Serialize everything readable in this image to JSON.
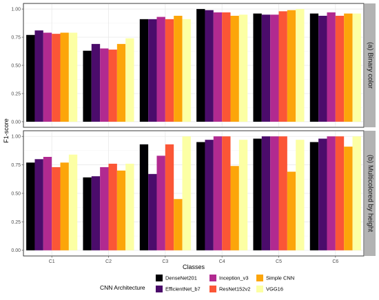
{
  "chart_data": {
    "type": "bar",
    "ylabel": "F1-score",
    "xlabel": "Classes",
    "ylim": [
      0,
      1.0
    ],
    "yticks": [
      "0.00",
      "0.25",
      "0.50",
      "0.75",
      "1.00"
    ],
    "categories": [
      "C1",
      "C2",
      "C3",
      "C4",
      "C5",
      "C6"
    ],
    "legend_title": "CNN Architecture",
    "legend_position": "bottom",
    "grid": true,
    "series_names": [
      "DenseNet201",
      "EfficientNet_b7",
      "Inception_v3",
      "ResNet152v2",
      "Simple CNN",
      "VGG16"
    ],
    "colors": [
      "#000004",
      "#4B0C6B",
      "#B12A90",
      "#FB5636",
      "#FCA50A",
      "#FCFFA4"
    ],
    "panels": [
      {
        "strip": "(a) Binary color",
        "series": [
          {
            "name": "DenseNet201",
            "values": [
              0.77,
              0.63,
              0.91,
              1.0,
              0.96,
              0.96
            ]
          },
          {
            "name": "EfficientNet_b7",
            "values": [
              0.81,
              0.69,
              0.91,
              0.99,
              0.95,
              0.94
            ]
          },
          {
            "name": "Inception_v3",
            "values": [
              0.79,
              0.65,
              0.93,
              0.97,
              0.95,
              0.97
            ]
          },
          {
            "name": "ResNet152v2",
            "values": [
              0.78,
              0.64,
              0.91,
              0.97,
              0.98,
              0.94
            ]
          },
          {
            "name": "Simple CNN",
            "values": [
              0.79,
              0.69,
              0.94,
              0.94,
              0.99,
              0.96
            ]
          },
          {
            "name": "VGG16",
            "values": [
              0.79,
              0.74,
              0.91,
              0.95,
              1.0,
              0.96
            ]
          }
        ]
      },
      {
        "strip": "(b) Multicolored by height",
        "series": [
          {
            "name": "DenseNet201",
            "values": [
              0.77,
              0.64,
              0.93,
              0.95,
              0.98,
              0.95
            ]
          },
          {
            "name": "EfficientNet_b7",
            "values": [
              0.8,
              0.65,
              0.67,
              0.97,
              1.0,
              0.98
            ]
          },
          {
            "name": "Inception_v3",
            "values": [
              0.82,
              0.73,
              0.83,
              1.0,
              1.0,
              1.0
            ]
          },
          {
            "name": "ResNet152v2",
            "values": [
              0.73,
              0.76,
              0.93,
              1.0,
              1.0,
              1.0
            ]
          },
          {
            "name": "Simple CNN",
            "values": [
              0.77,
              0.7,
              0.45,
              0.74,
              0.69,
              0.91
            ]
          },
          {
            "name": "VGG16",
            "values": [
              0.84,
              0.76,
              1.0,
              0.97,
              0.97,
              1.0
            ]
          }
        ]
      }
    ]
  }
}
